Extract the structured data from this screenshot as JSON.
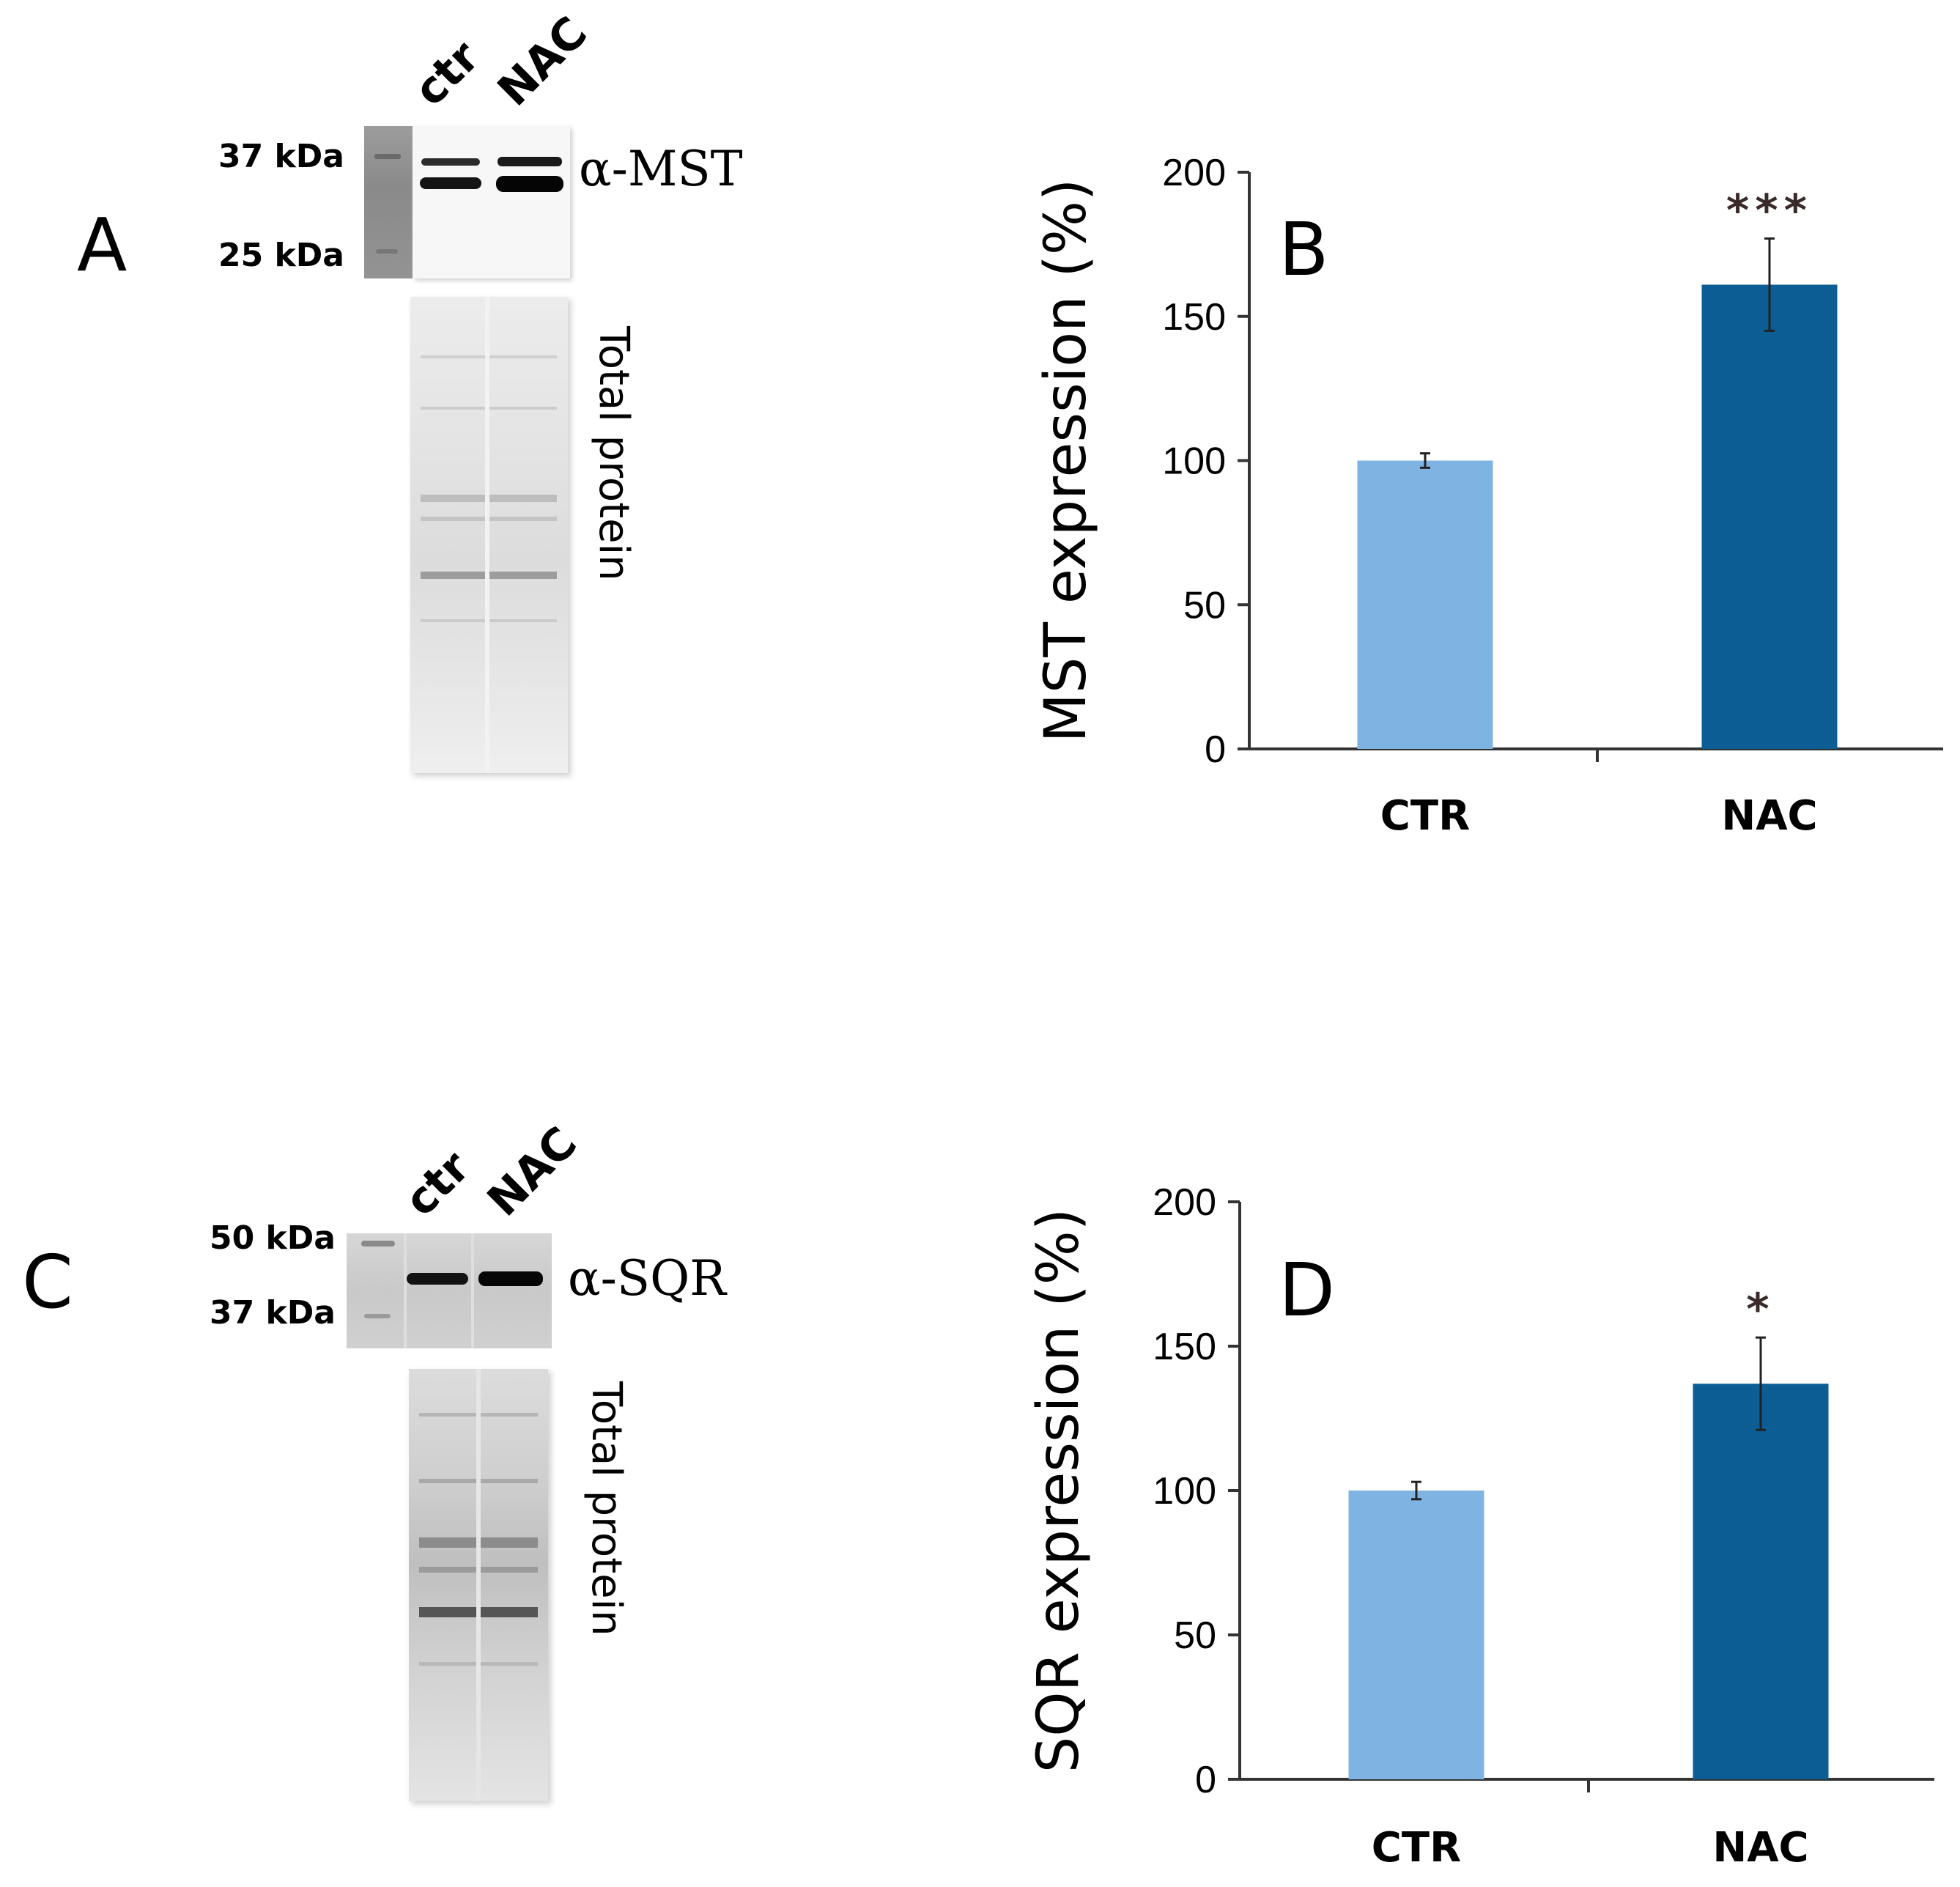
{
  "panels": {
    "A": {
      "letter": "A",
      "lanes": [
        "ctr",
        "NAC"
      ],
      "markers": [
        "37 kDa",
        "25 kDa"
      ],
      "antibody": "α-MST",
      "total_label": "Total protein"
    },
    "C": {
      "letter": "C",
      "lanes": [
        "ctr",
        "NAC"
      ],
      "markers": [
        "50 kDa",
        "37 kDa"
      ],
      "antibody": "α-SQR",
      "total_label": "Total protein"
    }
  },
  "chart_data": [
    {
      "panel": "B",
      "type": "bar",
      "categories": [
        "CTR",
        "NAC"
      ],
      "values": [
        100,
        161
      ],
      "errors": [
        2.5,
        16
      ],
      "significance": [
        "",
        "***"
      ],
      "ylabel": "MST expression (%)",
      "ylim": [
        0,
        200
      ],
      "yticks": [
        0,
        50,
        100,
        150,
        200
      ],
      "colors": [
        "#7fb3e2",
        "#0b5d94"
      ]
    },
    {
      "panel": "D",
      "type": "bar",
      "categories": [
        "CTR",
        "NAC"
      ],
      "values": [
        100,
        137
      ],
      "errors": [
        3,
        16
      ],
      "significance": [
        "",
        "*"
      ],
      "ylabel": "SQR expression (%)",
      "ylim": [
        0,
        200
      ],
      "yticks": [
        0,
        50,
        100,
        150,
        200
      ],
      "colors": [
        "#7fb3e2",
        "#0b5d94"
      ]
    }
  ]
}
